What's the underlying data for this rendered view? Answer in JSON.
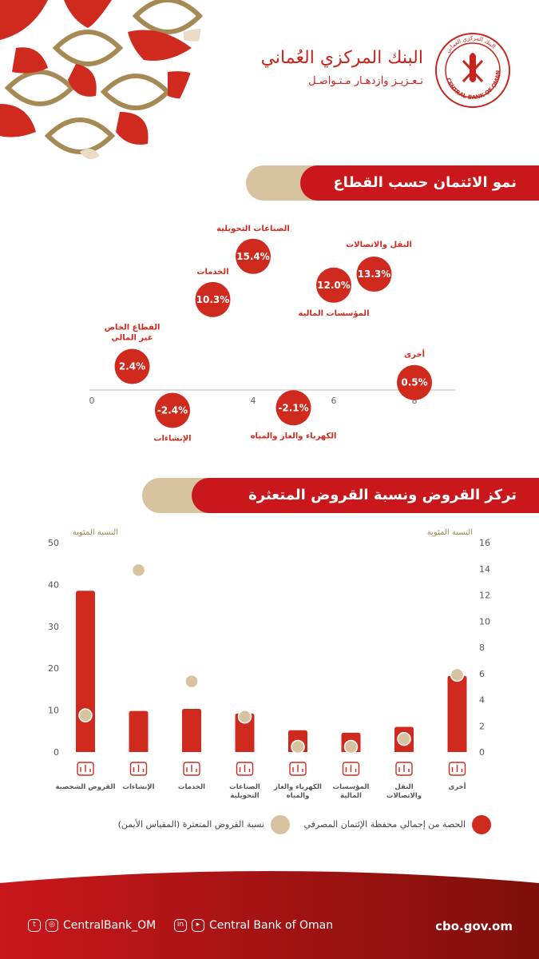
{
  "header": {
    "bank_name_ar": "البنك المركزي العُماني",
    "tagline_ar": "تـعـزيـز وازدهـار مـتـواصـل",
    "logo_text_en": "CENTRAL BANK OF OMAN",
    "logo_text_ar": "البنك المركزي العماني"
  },
  "colors": {
    "red": "#c9171b",
    "bubble_red": "#d02a1f",
    "tan": "#d8c3a0",
    "dark_red": "#8a120e"
  },
  "section1": {
    "title": "نمو الائتمان حسب القطاع"
  },
  "section2": {
    "title": "تركز القروض ونسبة القروض المتعثرة",
    "left_axis_label": "النسبة المئوية",
    "right_axis_label": "النسبة المئوية",
    "legend_share": "الحصة من إجمالي محفظة الإئتمان المصرفي",
    "legend_npl": "نسبة القروض المتعثرة (المقياس الأيمن)"
  },
  "chart_data": [
    {
      "type": "scatter",
      "title": "نمو الائتمان حسب القطاع",
      "xlim": [
        0,
        9
      ],
      "x_ticks": [
        0,
        2,
        4,
        6,
        8
      ],
      "points": [
        {
          "x": 1,
          "y": 2.4,
          "value_label": "2.4%",
          "name": "القطاع الخاص غير المالي"
        },
        {
          "x": 2,
          "y": -2.4,
          "value_label": "-2.4%",
          "name": "الإنشاءات"
        },
        {
          "x": 3,
          "y": 10.3,
          "value_label": "10.3%",
          "name": "الخدمات"
        },
        {
          "x": 4,
          "y": 15.4,
          "value_label": "15.4%",
          "name": "الصناعات التحويلية"
        },
        {
          "x": 5,
          "y": -2.1,
          "value_label": "-2.1%",
          "name": "الكهرباء والغاز والمياه"
        },
        {
          "x": 6,
          "y": 12.0,
          "value_label": "12.0%",
          "name": "المؤسسات المالية"
        },
        {
          "x": 7,
          "y": 13.3,
          "value_label": "13.3%",
          "name": "النقل والاتصالات"
        },
        {
          "x": 8,
          "y": 0.5,
          "value_label": "0.5%",
          "name": "أخرى"
        }
      ]
    },
    {
      "type": "bar",
      "title": "تركز القروض ونسبة القروض المتعثرة",
      "categories": [
        "القروض الشخصية",
        "الإنشاءات",
        "الخدمات",
        "الصناعات التحويلية",
        "الكهرباء والغاز والمياه",
        "المؤسسات المالية",
        "النقل والاتصالات",
        "أخرى"
      ],
      "category_lines": [
        [
          "القروض الشخصية"
        ],
        [
          "الإنشاءات"
        ],
        [
          "الخدمات"
        ],
        [
          "الصناعات",
          "التحويلية"
        ],
        [
          "الكهرباء والغاز",
          "والمياه"
        ],
        [
          "المؤسسات",
          "المالية"
        ],
        [
          "النقل",
          "والاتصالات"
        ],
        [
          "أخرى"
        ]
      ],
      "left_ylim": [
        0,
        50
      ],
      "left_ticks": [
        0,
        10,
        20,
        30,
        40,
        50
      ],
      "right_ylim": [
        0,
        16
      ],
      "right_ticks": [
        0,
        2,
        4,
        6,
        8,
        10,
        12,
        14,
        16
      ],
      "series": [
        {
          "name": "الحصة من إجمالي محفظة الإئتمان المصرفي",
          "axis": "left",
          "values": [
            38.5,
            9.8,
            10.3,
            9.2,
            5.2,
            4.6,
            6.0,
            18.2
          ]
        },
        {
          "name": "نسبة القروض المتعثرة (المقياس الأيمن)",
          "axis": "right",
          "values": [
            2.8,
            13.9,
            5.4,
            2.7,
            0.4,
            0.4,
            1.0,
            5.9
          ]
        }
      ]
    }
  ],
  "footer": {
    "social_handle": "CentralBank_OM",
    "social_name": "Central Bank of Oman",
    "website": "cbo.gov.om"
  }
}
